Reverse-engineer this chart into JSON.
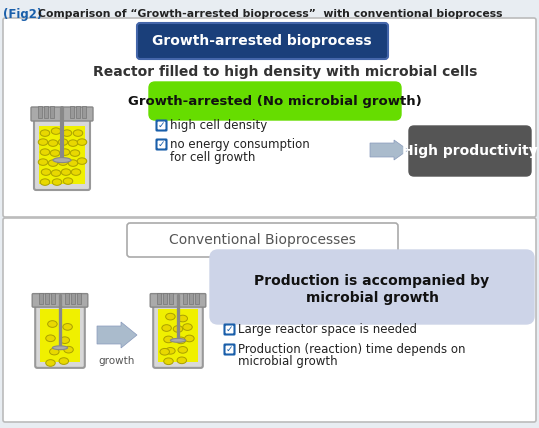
{
  "title_fig": "(Fig2)",
  "title_text": "Comparison of “Growth-arrested bioprocess”  with conventional bioprocess",
  "top_section_title": "Growth-arrested bioprocess",
  "top_section_subtitle": "Reactor filled to high density with microbial cells",
  "green_label": "Growth-arrested (No microbial growth)",
  "bullet1_check": "☑",
  "bullet1_text": "high cell density",
  "bullet2_check": "☑",
  "bullet2_text": "no energy consumption",
  "bullet2_text2": "for cell growth",
  "dark_box": "High productivity",
  "bottom_section_title": "Conventional Bioprocesses",
  "growth_label": "growth",
  "purple_box_line1": "Production is accompanied by",
  "purple_box_line2": "microbial growth",
  "bullet3_check": "☑",
  "bullet3_text": "Large reactor space is needed",
  "bullet4_check": "☑",
  "bullet4_text": "Production (reaction) time depends on",
  "bullet4_text2": "microbial growth",
  "bg_color": "#e8edf2",
  "top_panel_bg": "#ffffff",
  "bottom_panel_bg": "#ffffff",
  "top_header_bg": "#1a3f7a",
  "top_header_fg": "#ffffff",
  "bottom_header_fg": "#555555",
  "green_bg": "#66dd00",
  "green_fg": "#111111",
  "dark_box_bg": "#555555",
  "dark_box_fg": "#ffffff",
  "purple_box_bg": "#cdd4e8",
  "arrow_color": "#99aabb",
  "reactor_body_color": "#cccccc",
  "reactor_liquid_color": "#f0f000",
  "reactor_cell_color": "#e8d800",
  "cell_outline": "#aaa000",
  "check_color": "#1a5faa",
  "panel_border": "#bbbbbb"
}
